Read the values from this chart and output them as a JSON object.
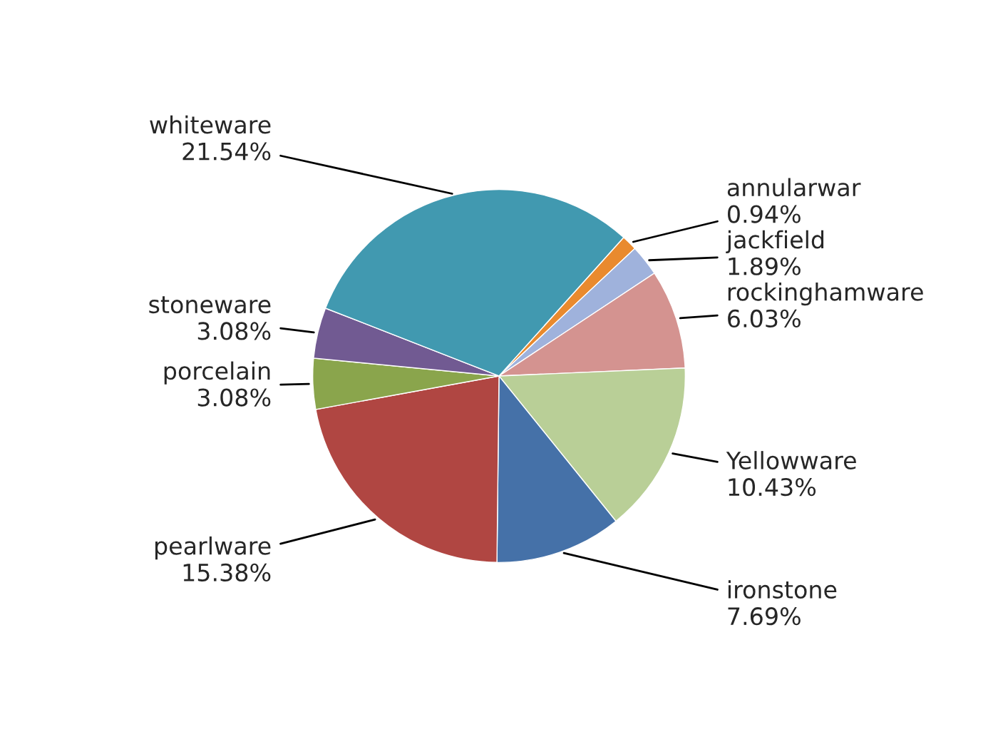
{
  "chart_data": {
    "type": "pie",
    "categories": [
      "annularwar",
      "jackfield",
      "rockinghamware",
      "Yellowware",
      "ironstone",
      "pearlware",
      "porcelain",
      "stoneware",
      "whiteware"
    ],
    "values": [
      0.94,
      1.89,
      6.03,
      10.43,
      7.69,
      15.38,
      3.08,
      3.08,
      21.54
    ],
    "value_labels": [
      "0.94%",
      "1.89%",
      "6.03%",
      "10.43%",
      "7.69%",
      "15.38%",
      "3.08%",
      "3.08%",
      "21.54%"
    ],
    "colors": [
      "#e98a2e",
      "#9fb2dc",
      "#d49390",
      "#b9cf97",
      "#4571a8",
      "#b04642",
      "#8aa54c",
      "#715a92",
      "#4199b0"
    ],
    "legend": false
  }
}
